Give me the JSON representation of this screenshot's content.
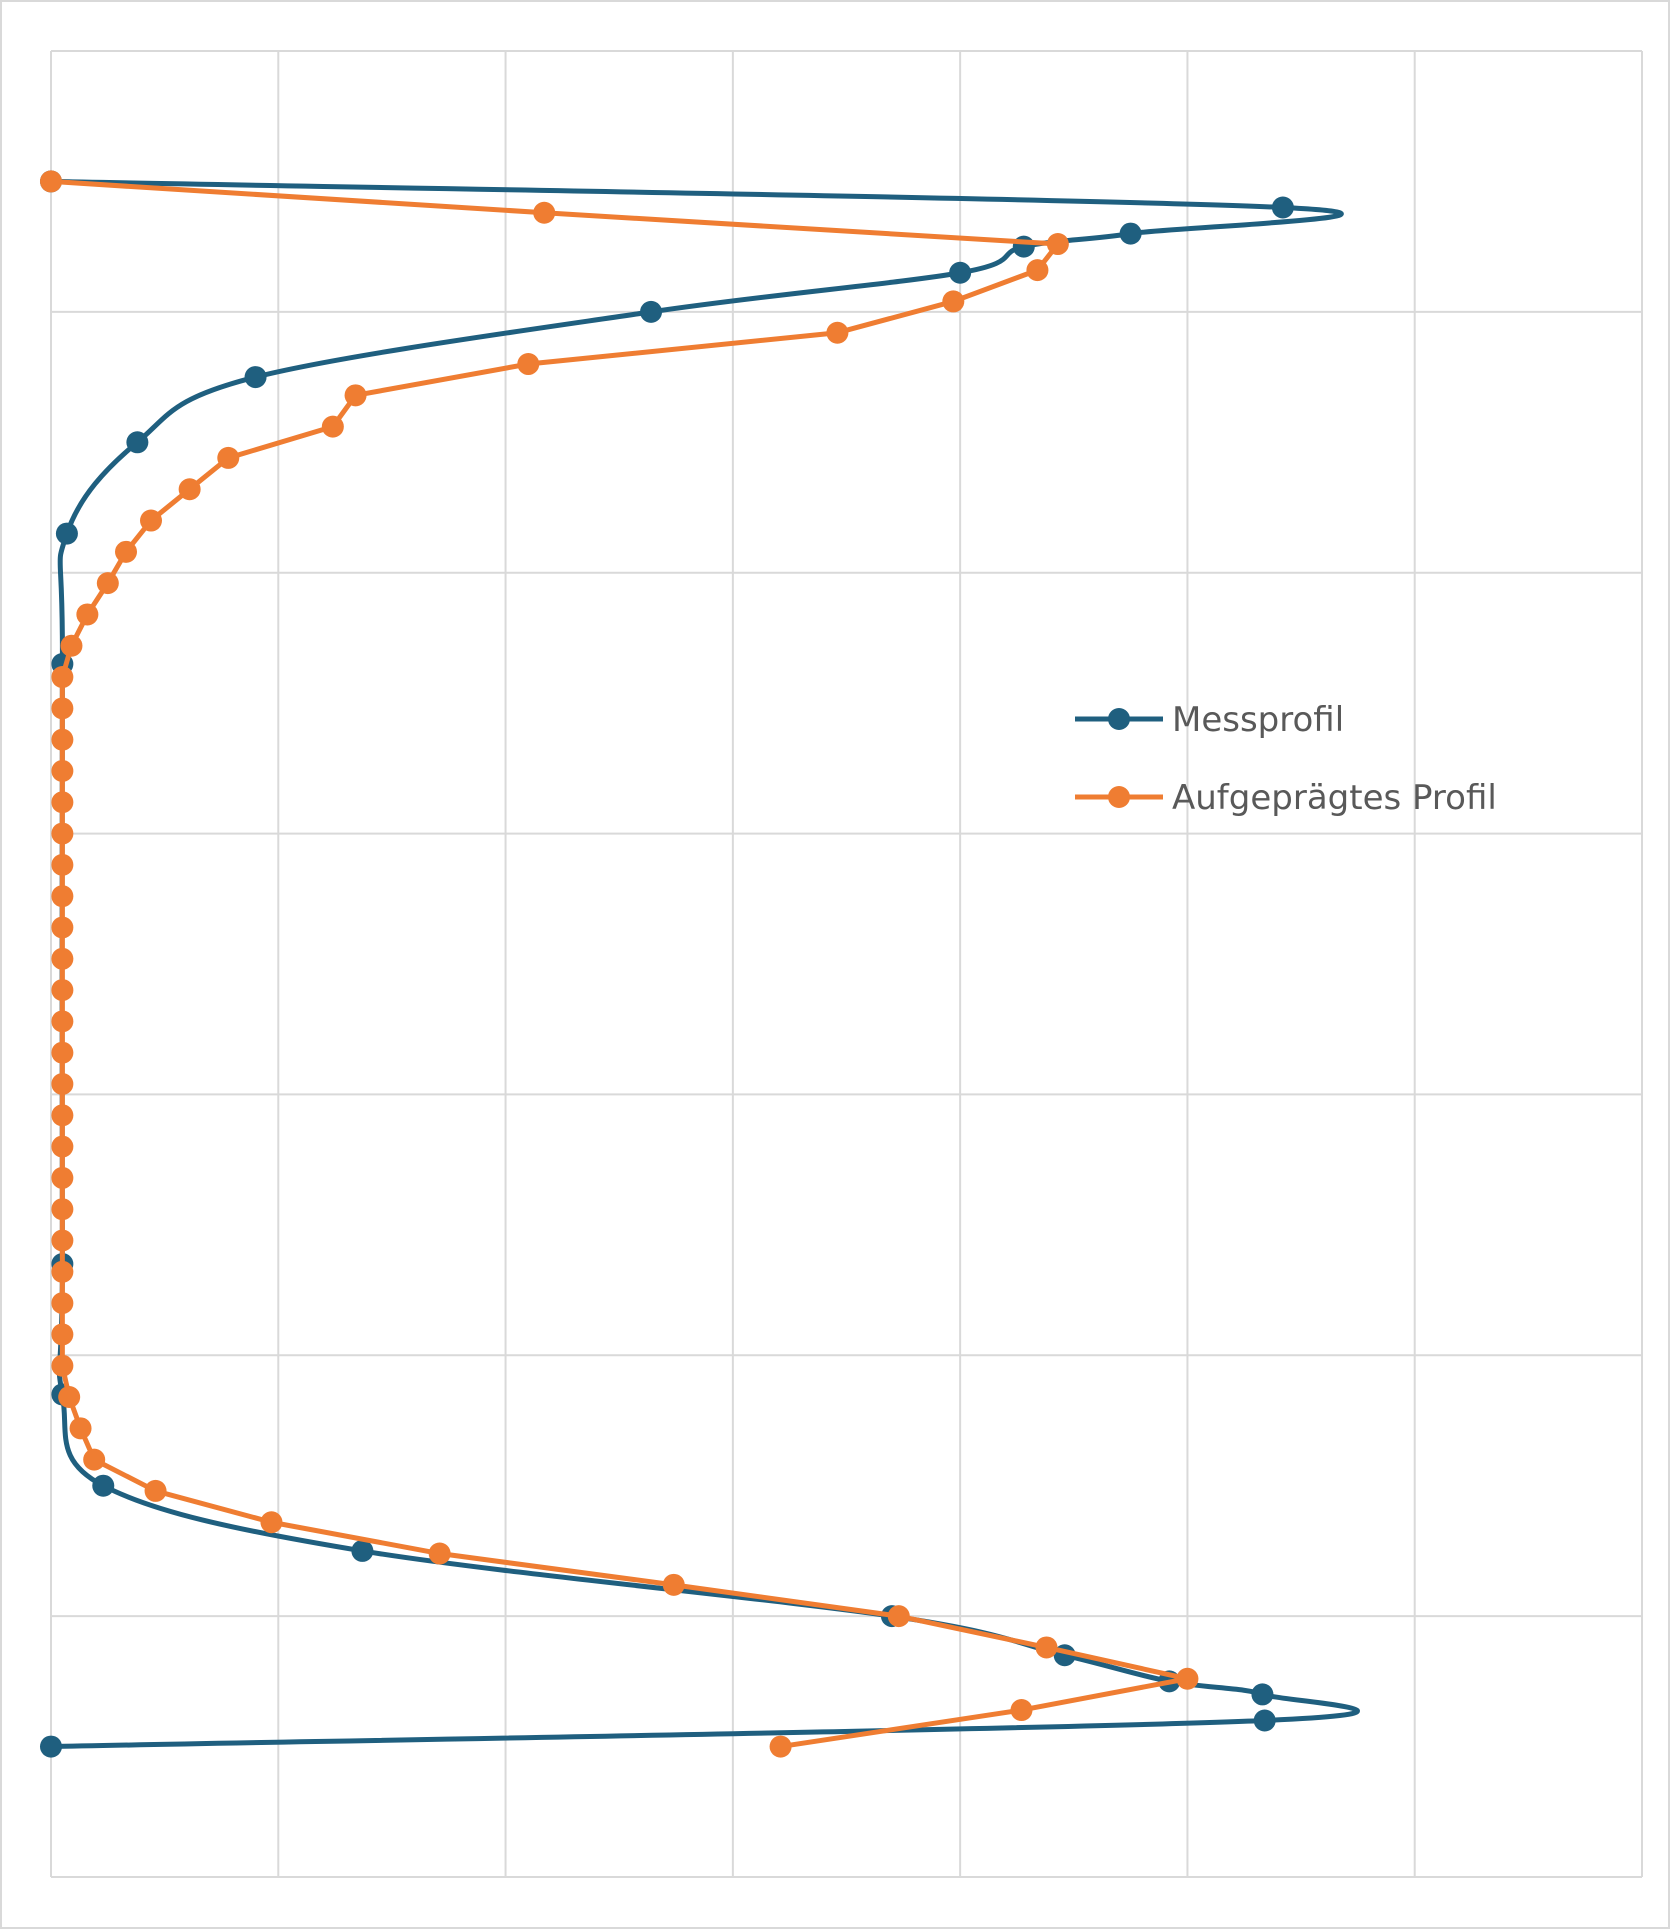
{
  "chart_data": {
    "type": "scatter",
    "title": "",
    "xlabel": "",
    "ylabel": "",
    "xlim": [
      0,
      7
    ],
    "ylim": [
      0,
      7
    ],
    "y_inverted": true,
    "grid": true,
    "legend_position": "right-middle",
    "series": [
      {
        "name": "Messprofil",
        "color": "#1f5f7f",
        "smooth": true,
        "points": [
          [
            0,
            0.5
          ],
          [
            5.42,
            0.6
          ],
          [
            4.75,
            0.7
          ],
          [
            4.28,
            0.75
          ],
          [
            4.0,
            0.85
          ],
          [
            2.64,
            1.0
          ],
          [
            0.9,
            1.25
          ],
          [
            0.38,
            1.5
          ],
          [
            0.07,
            1.85
          ],
          [
            0.05,
            2.35
          ],
          [
            0.05,
            4.65
          ],
          [
            0.05,
            5.15
          ],
          [
            0.23,
            5.5
          ],
          [
            1.37,
            5.75
          ],
          [
            3.7,
            6.0
          ],
          [
            4.46,
            6.15
          ],
          [
            4.92,
            6.25
          ],
          [
            5.33,
            6.3
          ],
          [
            5.34,
            6.4
          ],
          [
            0,
            6.5
          ]
        ]
      },
      {
        "name": "Aufgeprägtes Profil",
        "color": "#ef7d32",
        "smooth": false,
        "points": [
          [
            0,
            0.5
          ],
          [
            2.17,
            0.62
          ],
          [
            4.43,
            0.74
          ],
          [
            4.34,
            0.84
          ],
          [
            3.97,
            0.96
          ],
          [
            3.46,
            1.08
          ],
          [
            2.1,
            1.2
          ],
          [
            1.34,
            1.32
          ],
          [
            1.24,
            1.44
          ],
          [
            0.78,
            1.56
          ],
          [
            0.61,
            1.68
          ],
          [
            0.44,
            1.8
          ],
          [
            0.33,
            1.92
          ],
          [
            0.25,
            2.04
          ],
          [
            0.16,
            2.16
          ],
          [
            0.09,
            2.28
          ],
          [
            0.05,
            2.4
          ],
          [
            0.05,
            2.52
          ],
          [
            0.05,
            2.64
          ],
          [
            0.05,
            2.76
          ],
          [
            0.05,
            2.88
          ],
          [
            0.05,
            3.0
          ],
          [
            0.05,
            3.12
          ],
          [
            0.05,
            3.24
          ],
          [
            0.05,
            3.36
          ],
          [
            0.05,
            3.48
          ],
          [
            0.05,
            3.6
          ],
          [
            0.05,
            3.72
          ],
          [
            0.05,
            3.84
          ],
          [
            0.05,
            3.96
          ],
          [
            0.05,
            4.08
          ],
          [
            0.05,
            4.2
          ],
          [
            0.05,
            4.32
          ],
          [
            0.05,
            4.44
          ],
          [
            0.05,
            4.56
          ],
          [
            0.05,
            4.68
          ],
          [
            0.05,
            4.8
          ],
          [
            0.05,
            4.92
          ],
          [
            0.05,
            5.04
          ],
          [
            0.08,
            5.16
          ],
          [
            0.13,
            5.28
          ],
          [
            0.19,
            5.4
          ],
          [
            0.46,
            5.52
          ],
          [
            0.97,
            5.64
          ],
          [
            1.71,
            5.76
          ],
          [
            2.74,
            5.88
          ],
          [
            3.73,
            6.0
          ],
          [
            4.38,
            6.12
          ],
          [
            5.0,
            6.24
          ],
          [
            4.27,
            6.36
          ],
          [
            3.21,
            6.5
          ]
        ]
      }
    ]
  },
  "colors": {
    "grid": "#d9d9d9",
    "legend_text": "#595959",
    "frame": "#d9d9d9"
  }
}
